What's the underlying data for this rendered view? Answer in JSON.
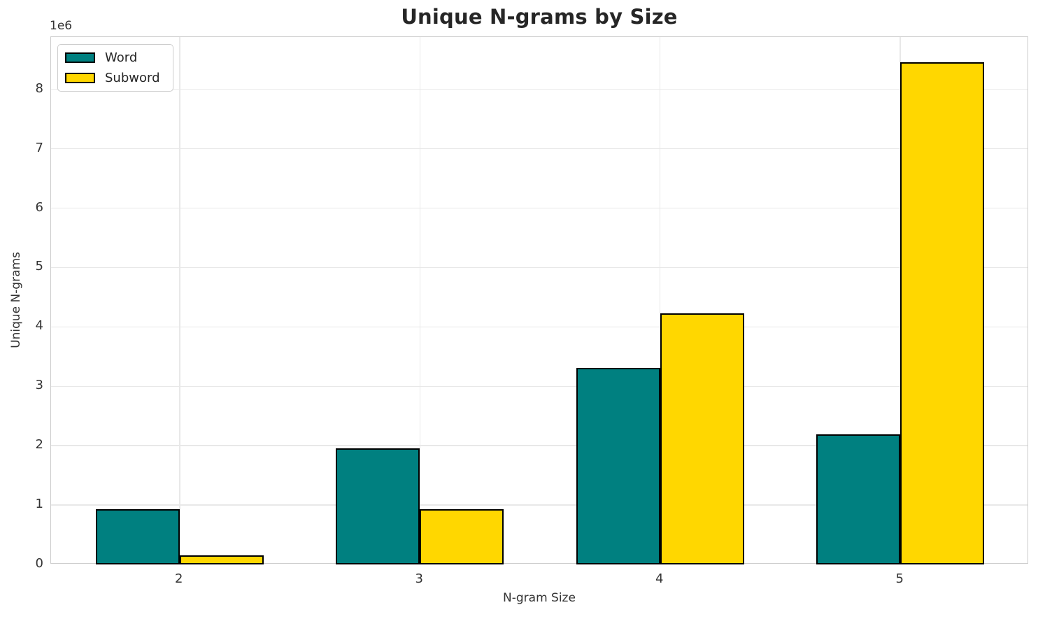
{
  "chart_data": {
    "type": "bar",
    "title": "Unique N-grams by Size",
    "xlabel": "N-gram Size",
    "ylabel": "Unique N-grams",
    "offset_text": "1e6",
    "categories": [
      "2",
      "3",
      "4",
      "5"
    ],
    "x_positions": [
      2,
      3,
      4,
      5
    ],
    "series": [
      {
        "name": "Word",
        "color": "#008080",
        "values": [
          935000,
          1955000,
          3310000,
          2190000
        ]
      },
      {
        "name": "Subword",
        "color": "#FFD700",
        "values": [
          150000,
          930000,
          4230000,
          8460000
        ]
      }
    ],
    "bar_width_units": 0.35,
    "bar_edge_color": "#000000",
    "xlim": [
      1.465,
      5.535
    ],
    "ylim": [
      0,
      8880000
    ],
    "yticks": [
      0,
      1000000,
      2000000,
      3000000,
      4000000,
      5000000,
      6000000,
      7000000,
      8000000
    ],
    "ytick_labels": [
      "0",
      "1",
      "2",
      "3",
      "4",
      "5",
      "6",
      "7",
      "8"
    ],
    "grid": true,
    "legend_position": "upper left",
    "colors": {
      "grid": "#e8e8e8",
      "spine": "#cccccc",
      "text": "#262626",
      "background": "#ffffff"
    }
  }
}
